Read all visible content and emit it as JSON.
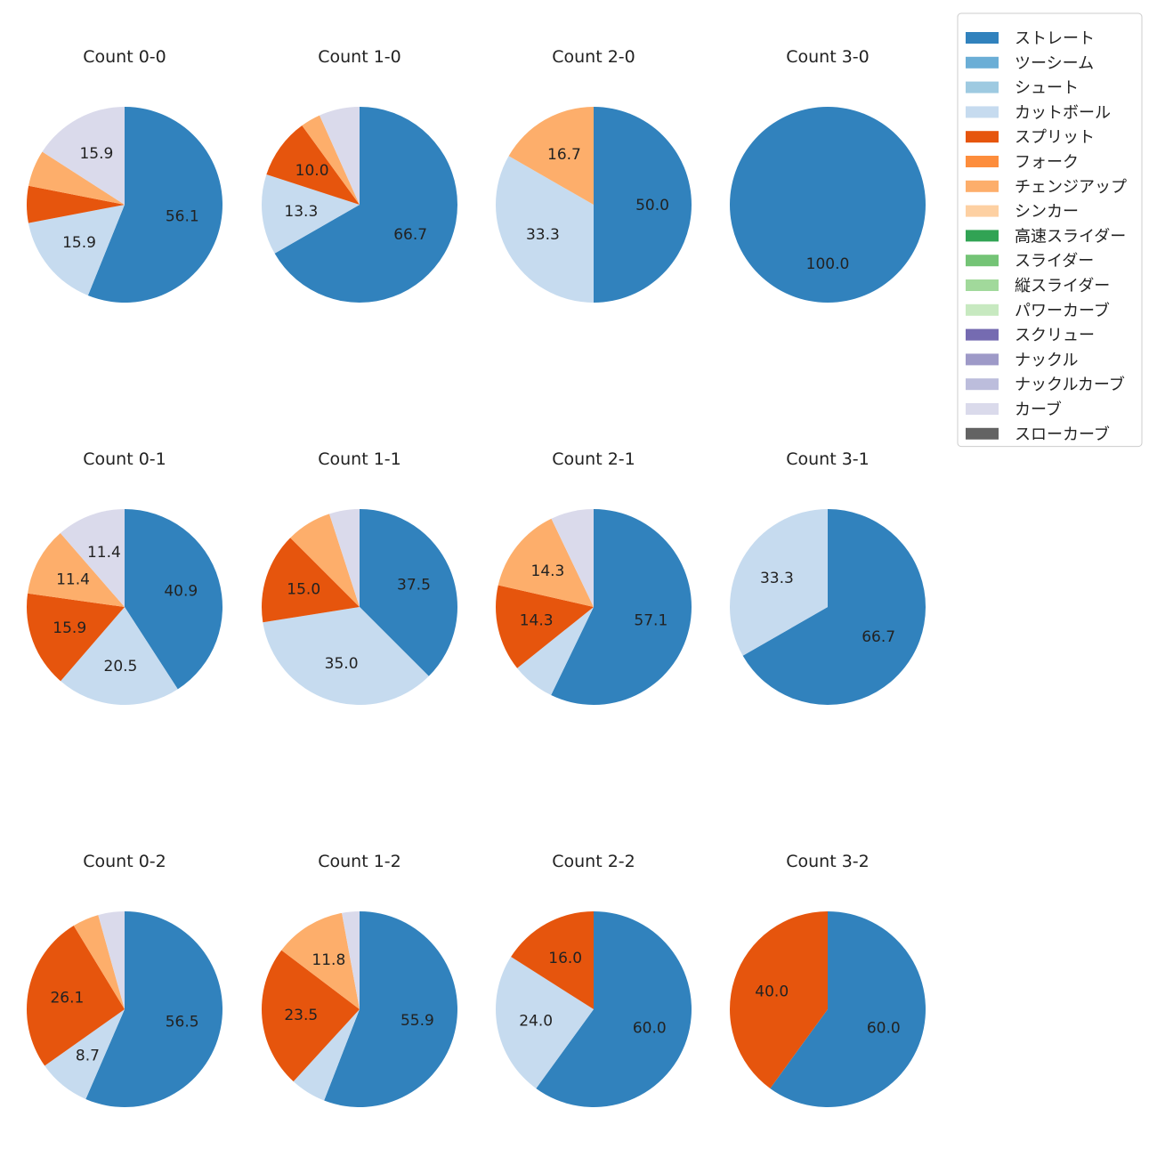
{
  "chart_data": {
    "type": "pie",
    "legend": {
      "placement": "top-right",
      "entries": [
        {
          "name": "ストレート",
          "color": "#3182bd"
        },
        {
          "name": "ツーシーム",
          "color": "#6baed6"
        },
        {
          "name": "シュート",
          "color": "#9ecae1"
        },
        {
          "name": "カットボール",
          "color": "#c6dbef"
        },
        {
          "name": "スプリット",
          "color": "#e6550d"
        },
        {
          "name": "フォーク",
          "color": "#fd8d3c"
        },
        {
          "name": "チェンジアップ",
          "color": "#fdae6b"
        },
        {
          "name": "シンカー",
          "color": "#fdd0a2"
        },
        {
          "name": "高速スライダー",
          "color": "#31a354"
        },
        {
          "name": "スライダー",
          "color": "#74c476"
        },
        {
          "name": "縦スライダー",
          "color": "#a1d99b"
        },
        {
          "name": "パワーカーブ",
          "color": "#c7e9c0"
        },
        {
          "name": "スクリュー",
          "color": "#756bb1"
        },
        {
          "name": "ナックル",
          "color": "#9e9ac8"
        },
        {
          "name": "ナックルカーブ",
          "color": "#bcbddc"
        },
        {
          "name": "カーブ",
          "color": "#dadaeb"
        },
        {
          "name": "スローカーブ",
          "color": "#636363"
        }
      ]
    },
    "pies": [
      {
        "title": "Count 0-0",
        "slices": [
          {
            "name": "ストレート",
            "value": 56.1,
            "label": "56.1"
          },
          {
            "name": "カットボール",
            "value": 15.9,
            "label": "15.9"
          },
          {
            "name": "スプリット",
            "value": 6.1,
            "label": ""
          },
          {
            "name": "チェンジアップ",
            "value": 6.0,
            "label": ""
          },
          {
            "name": "カーブ",
            "value": 15.9,
            "label": "15.9"
          }
        ]
      },
      {
        "title": "Count 1-0",
        "slices": [
          {
            "name": "ストレート",
            "value": 66.7,
            "label": "66.7"
          },
          {
            "name": "カットボール",
            "value": 13.3,
            "label": "13.3"
          },
          {
            "name": "スプリット",
            "value": 10.0,
            "label": "10.0"
          },
          {
            "name": "チェンジアップ",
            "value": 3.3,
            "label": ""
          },
          {
            "name": "カーブ",
            "value": 6.7,
            "label": ""
          }
        ]
      },
      {
        "title": "Count 2-0",
        "slices": [
          {
            "name": "ストレート",
            "value": 50.0,
            "label": "50.0"
          },
          {
            "name": "カットボール",
            "value": 33.3,
            "label": "33.3"
          },
          {
            "name": "チェンジアップ",
            "value": 16.7,
            "label": "16.7"
          }
        ]
      },
      {
        "title": "Count 3-0",
        "slices": [
          {
            "name": "ストレート",
            "value": 100.0,
            "label": "100.0"
          }
        ]
      },
      {
        "title": "Count 0-1",
        "slices": [
          {
            "name": "ストレート",
            "value": 40.9,
            "label": "40.9"
          },
          {
            "name": "カットボール",
            "value": 20.5,
            "label": "20.5"
          },
          {
            "name": "スプリット",
            "value": 15.9,
            "label": "15.9"
          },
          {
            "name": "チェンジアップ",
            "value": 11.4,
            "label": "11.4"
          },
          {
            "name": "カーブ",
            "value": 11.4,
            "label": "11.4"
          }
        ]
      },
      {
        "title": "Count 1-1",
        "slices": [
          {
            "name": "ストレート",
            "value": 37.5,
            "label": "37.5"
          },
          {
            "name": "カットボール",
            "value": 35.0,
            "label": "35.0"
          },
          {
            "name": "スプリット",
            "value": 15.0,
            "label": "15.0"
          },
          {
            "name": "チェンジアップ",
            "value": 7.5,
            "label": ""
          },
          {
            "name": "カーブ",
            "value": 5.0,
            "label": ""
          }
        ]
      },
      {
        "title": "Count 2-1",
        "slices": [
          {
            "name": "ストレート",
            "value": 57.1,
            "label": "57.1"
          },
          {
            "name": "カットボール",
            "value": 7.1,
            "label": ""
          },
          {
            "name": "スプリット",
            "value": 14.3,
            "label": "14.3"
          },
          {
            "name": "チェンジアップ",
            "value": 14.3,
            "label": "14.3"
          },
          {
            "name": "カーブ",
            "value": 7.1,
            "label": ""
          }
        ]
      },
      {
        "title": "Count 3-1",
        "slices": [
          {
            "name": "ストレート",
            "value": 66.7,
            "label": "66.7"
          },
          {
            "name": "カットボール",
            "value": 33.3,
            "label": "33.3"
          }
        ]
      },
      {
        "title": "Count 0-2",
        "slices": [
          {
            "name": "ストレート",
            "value": 56.5,
            "label": "56.5"
          },
          {
            "name": "カットボール",
            "value": 8.7,
            "label": "8.7"
          },
          {
            "name": "スプリット",
            "value": 26.1,
            "label": "26.1"
          },
          {
            "name": "チェンジアップ",
            "value": 4.35,
            "label": ""
          },
          {
            "name": "カーブ",
            "value": 4.35,
            "label": ""
          }
        ]
      },
      {
        "title": "Count 1-2",
        "slices": [
          {
            "name": "ストレート",
            "value": 55.9,
            "label": "55.9"
          },
          {
            "name": "カットボール",
            "value": 5.9,
            "label": ""
          },
          {
            "name": "スプリット",
            "value": 23.5,
            "label": "23.5"
          },
          {
            "name": "チェンジアップ",
            "value": 11.8,
            "label": "11.8"
          },
          {
            "name": "カーブ",
            "value": 2.9,
            "label": ""
          }
        ]
      },
      {
        "title": "Count 2-2",
        "slices": [
          {
            "name": "ストレート",
            "value": 60.0,
            "label": "60.0"
          },
          {
            "name": "カットボール",
            "value": 24.0,
            "label": "24.0"
          },
          {
            "name": "スプリット",
            "value": 16.0,
            "label": "16.0"
          }
        ]
      },
      {
        "title": "Count 3-2",
        "slices": [
          {
            "name": "ストレート",
            "value": 60.0,
            "label": "60.0"
          },
          {
            "name": "スプリット",
            "value": 40.0,
            "label": "40.0"
          }
        ]
      }
    ]
  }
}
